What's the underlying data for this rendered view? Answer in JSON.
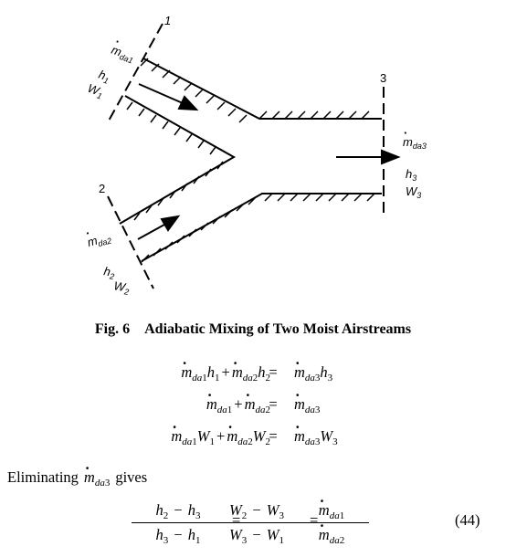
{
  "diagram": {
    "section_labels": [
      "1",
      "2",
      "3"
    ],
    "inlet1": {
      "mass": "m",
      "mass_sub": "da1",
      "enthalpy": "h",
      "enthalpy_sub": "1",
      "humidity": "W",
      "humidity_sub": "1"
    },
    "inlet2": {
      "mass": "m",
      "mass_sub": "da2",
      "enthalpy": "h",
      "enthalpy_sub": "2",
      "humidity": "W",
      "humidity_sub": "2"
    },
    "outlet": {
      "mass": "m",
      "mass_sub": "da3",
      "enthalpy": "h",
      "enthalpy_sub": "3",
      "humidity": "W",
      "humidity_sub": "3"
    }
  },
  "caption": {
    "number": "Fig. 6",
    "title": "Adiabatic Mixing of Two Moist Airstreams"
  },
  "equations": [
    {
      "lhs": [
        "m_da1 h_1",
        "m_da2 h_2"
      ],
      "rhs": "m_da3 h_3"
    },
    {
      "lhs": [
        "m_da1",
        "m_da2"
      ],
      "rhs": "m_da3"
    },
    {
      "lhs": [
        "m_da1 W_1",
        "m_da2 W_2"
      ],
      "rhs": "m_da3 W_3"
    }
  ],
  "text": {
    "eliminating": "Eliminating",
    "gives": "gives"
  },
  "final_equation": {
    "fractions": [
      {
        "numerator": "h_2 − h_3",
        "denominator": "h_3 − h_1"
      },
      {
        "numerator": "W_2 − W_3",
        "denominator": "W_3 − W_1"
      },
      {
        "numerator": "m_da1",
        "denominator": "m_da2"
      }
    ],
    "number": "(44)"
  }
}
